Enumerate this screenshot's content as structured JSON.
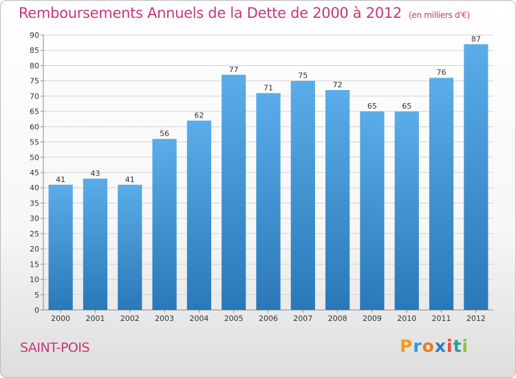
{
  "title": "Remboursements Annuels de la Dette de 2000 à 2012",
  "unit": "(en milliers d'€)",
  "city": "SAINT-POIS",
  "logo": {
    "letters": [
      "P",
      "r",
      "o",
      "x",
      "i",
      "t",
      "i"
    ],
    "colors": [
      "#f39c12",
      "#3498db",
      "#e67e22",
      "#2c7dc2",
      "#e74c3c",
      "#2aa198",
      "#8bc34a"
    ]
  },
  "colors": {
    "bar_light": "#5aade8",
    "bar_dark": "#2a78b8",
    "title": "#c8357a"
  },
  "chart_data": {
    "type": "bar",
    "categories": [
      "2000",
      "2001",
      "2002",
      "2003",
      "2004",
      "2005",
      "2006",
      "2007",
      "2008",
      "2009",
      "2010",
      "2011",
      "2012"
    ],
    "values": [
      41,
      43,
      41,
      56,
      62,
      77,
      71,
      75,
      72,
      65,
      65,
      76,
      87
    ],
    "ylim": [
      0,
      90
    ],
    "yticks": [
      0,
      5,
      10,
      15,
      20,
      25,
      30,
      35,
      40,
      45,
      50,
      55,
      60,
      65,
      70,
      75,
      80,
      85,
      90
    ],
    "grid": true,
    "data_labels": true
  }
}
